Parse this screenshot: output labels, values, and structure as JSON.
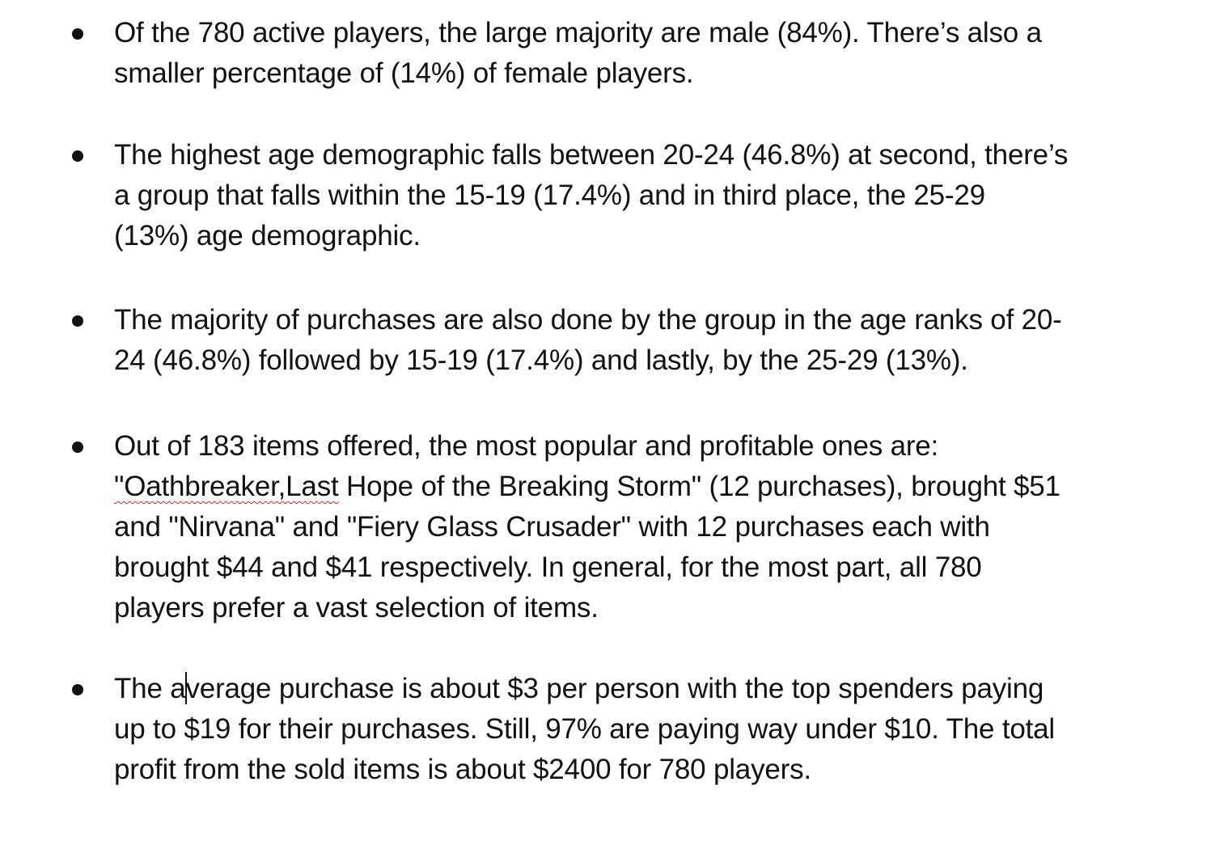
{
  "bullets": [
    {
      "lines": [
        "Of the 780 active players, the large majority are male (84%). There’s also a",
        "smaller percentage of (14%) of female players."
      ]
    },
    {
      "lines": [
        "The highest age demographic falls between 20-24 (46.8%) at second, there’s",
        "a group that falls within the 15-19 (17.4%) and in third place, the 25-29",
        "(13%) age demographic."
      ]
    },
    {
      "lines": [
        "The majority of purchases are also done by the group in the age ranks of 20-",
        "24 (46.8%) followed by 15-19 (17.4%) and lastly, by the 25-29 (13%)."
      ]
    },
    {
      "line1": "Out of 183 items offered, the most popular and profitable ones are:",
      "line2_misspelled": "\"Oathbreaker,Last",
      "line2_rest": " Hope of the Breaking Storm\" (12 purchases), brought $51",
      "line3": "and \"Nirvana\" and \"Fiery Glass Crusader\" with 12 purchases each with",
      "line4": "brought $44 and $41 respectively. In general, for the most part, all 780",
      "line5": "players prefer a vast selection of items."
    },
    {
      "line1_before_caret": "The a",
      "line1_after_caret": "verage purchase is about $3 per person with the top spenders paying",
      "line2": "up to $19 for their purchases. Still, 97% are paying way under $10. The total",
      "line3": "profit from the sold items is about $2400 for 780 players."
    }
  ]
}
